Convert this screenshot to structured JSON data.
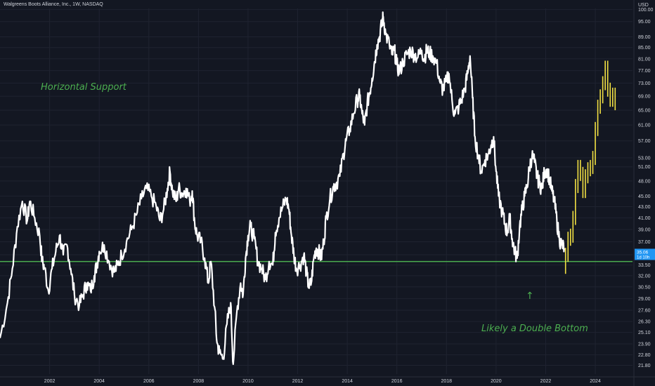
{
  "chart_data": {
    "type": "line",
    "title": "Walgreens Boots Alliance, Inc., 1W, NASDAQ",
    "currency": "USD",
    "y_scale": "log",
    "ylim": [
      21.0,
      100.5
    ],
    "xlim": [
      2000.0,
      2025.5
    ],
    "y_ticks": [
      "100.00",
      "95.00",
      "89.00",
      "85.00",
      "81.00",
      "77.00",
      "73.00",
      "69.00",
      "65.00",
      "61.00",
      "57.00",
      "53.00",
      "51.00",
      "48.00",
      "45.00",
      "43.00",
      "41.00",
      "39.00",
      "37.00",
      "35.00",
      "33.50",
      "32.00",
      "30.50",
      "29.00",
      "27.60",
      "26.30",
      "25.10",
      "23.90",
      "22.80",
      "21.80"
    ],
    "x_ticks": [
      "2002",
      "2004",
      "2006",
      "2008",
      "2010",
      "2012",
      "2014",
      "2016",
      "2018",
      "2020",
      "2022",
      "2024"
    ],
    "support_level": 34.0,
    "last_price": {
      "value": "35.06",
      "countdown": "1d 10h",
      "color": "#2196f3"
    },
    "annotations": {
      "support": "Horizontal Support",
      "double_bottom": "Likely a Double Bottom",
      "arrow": "↑"
    },
    "colors": {
      "background": "#131722",
      "grid": "#1f2330",
      "price": "#ffffff",
      "projection": "#f2e043",
      "support": "#4caf50",
      "axis_text": "#d1d4dc"
    },
    "series": [
      {
        "style": "line",
        "color": "#ffffff",
        "points": [
          [
            2000.0,
            24.5
          ],
          [
            2000.3,
            28.5
          ],
          [
            2000.5,
            33.0
          ],
          [
            2000.7,
            39.5
          ],
          [
            2000.9,
            44.0
          ],
          [
            2001.1,
            40.5
          ],
          [
            2001.2,
            44.0
          ],
          [
            2001.4,
            41.0
          ],
          [
            2001.6,
            38.0
          ],
          [
            2001.7,
            34.0
          ],
          [
            2001.8,
            33.0
          ],
          [
            2001.95,
            30.0
          ],
          [
            2002.1,
            33.0
          ],
          [
            2002.25,
            35.5
          ],
          [
            2002.4,
            38.0
          ],
          [
            2002.55,
            35.0
          ],
          [
            2002.7,
            36.5
          ],
          [
            2002.85,
            33.0
          ],
          [
            2003.0,
            29.5
          ],
          [
            2003.2,
            28.2
          ],
          [
            2003.35,
            29.5
          ],
          [
            2003.5,
            31.0
          ],
          [
            2003.65,
            30.0
          ],
          [
            2003.8,
            32.0
          ],
          [
            2003.9,
            33.5
          ],
          [
            2004.0,
            35.5
          ],
          [
            2004.2,
            36.5
          ],
          [
            2004.4,
            34.0
          ],
          [
            2004.6,
            32.5
          ],
          [
            2004.75,
            33.5
          ],
          [
            2004.9,
            35.0
          ],
          [
            2005.1,
            37.0
          ],
          [
            2005.3,
            39.0
          ],
          [
            2005.5,
            41.5
          ],
          [
            2005.7,
            44.5
          ],
          [
            2005.9,
            46.5
          ],
          [
            2006.1,
            45.0
          ],
          [
            2006.3,
            43.0
          ],
          [
            2006.45,
            40.5
          ],
          [
            2006.6,
            42.5
          ],
          [
            2006.75,
            46.5
          ],
          [
            2006.85,
            50.0
          ],
          [
            2006.95,
            46.0
          ],
          [
            2007.1,
            44.0
          ],
          [
            2007.2,
            46.5
          ],
          [
            2007.35,
            45.5
          ],
          [
            2007.5,
            46.5
          ],
          [
            2007.65,
            44.0
          ],
          [
            2007.75,
            46.0
          ],
          [
            2007.85,
            40.0
          ],
          [
            2007.95,
            38.0
          ],
          [
            2008.1,
            37.0
          ],
          [
            2008.25,
            34.5
          ],
          [
            2008.4,
            31.0
          ],
          [
            2008.5,
            34.0
          ],
          [
            2008.65,
            28.0
          ],
          [
            2008.75,
            24.0
          ],
          [
            2008.85,
            23.0
          ],
          [
            2009.0,
            22.5
          ],
          [
            2009.15,
            26.0
          ],
          [
            2009.3,
            28.5
          ],
          [
            2009.4,
            21.9
          ],
          [
            2009.55,
            27.5
          ],
          [
            2009.7,
            31.0
          ],
          [
            2009.8,
            29.5
          ],
          [
            2009.9,
            34.5
          ],
          [
            2010.0,
            38.0
          ],
          [
            2010.1,
            39.5
          ],
          [
            2010.25,
            37.5
          ],
          [
            2010.4,
            34.0
          ],
          [
            2010.55,
            33.0
          ],
          [
            2010.7,
            31.5
          ],
          [
            2010.85,
            34.0
          ],
          [
            2011.0,
            33.5
          ],
          [
            2011.1,
            38.5
          ],
          [
            2011.25,
            41.0
          ],
          [
            2011.4,
            43.0
          ],
          [
            2011.55,
            44.5
          ],
          [
            2011.65,
            42.5
          ],
          [
            2011.75,
            38.0
          ],
          [
            2011.85,
            35.0
          ],
          [
            2011.95,
            33.0
          ],
          [
            2012.1,
            33.5
          ],
          [
            2012.25,
            35.0
          ],
          [
            2012.35,
            32.5
          ],
          [
            2012.45,
            30.5
          ],
          [
            2012.55,
            31.0
          ],
          [
            2012.65,
            34.5
          ],
          [
            2012.75,
            36.0
          ],
          [
            2012.85,
            35.5
          ],
          [
            2012.95,
            34.5
          ],
          [
            2013.05,
            37.0
          ],
          [
            2013.15,
            41.0
          ],
          [
            2013.3,
            44.5
          ],
          [
            2013.45,
            47.0
          ],
          [
            2013.55,
            47.5
          ],
          [
            2013.7,
            49.0
          ],
          [
            2013.85,
            54.0
          ],
          [
            2013.95,
            57.0
          ],
          [
            2014.1,
            60.0
          ],
          [
            2014.25,
            64.0
          ],
          [
            2014.4,
            68.0
          ],
          [
            2014.5,
            69.0
          ],
          [
            2014.6,
            64.0
          ],
          [
            2014.7,
            61.0
          ],
          [
            2014.8,
            66.5
          ],
          [
            2014.9,
            70.0
          ],
          [
            2015.0,
            74.5
          ],
          [
            2015.1,
            80.0
          ],
          [
            2015.2,
            86.0
          ],
          [
            2015.3,
            89.0
          ],
          [
            2015.4,
            94.5
          ],
          [
            2015.45,
            97.0
          ],
          [
            2015.55,
            90.0
          ],
          [
            2015.7,
            86.0
          ],
          [
            2015.8,
            82.5
          ],
          [
            2015.9,
            84.0
          ],
          [
            2016.0,
            79.0
          ],
          [
            2016.1,
            76.5
          ],
          [
            2016.25,
            80.0
          ],
          [
            2016.4,
            82.5
          ],
          [
            2016.55,
            84.0
          ],
          [
            2016.7,
            82.5
          ],
          [
            2016.85,
            81.5
          ],
          [
            2017.0,
            84.0
          ],
          [
            2017.1,
            81.0
          ],
          [
            2017.2,
            84.0
          ],
          [
            2017.3,
            83.0
          ],
          [
            2017.45,
            82.0
          ],
          [
            2017.6,
            79.5
          ],
          [
            2017.75,
            73.0
          ],
          [
            2017.85,
            71.0
          ],
          [
            2018.0,
            73.5
          ],
          [
            2018.1,
            76.0
          ],
          [
            2018.25,
            66.0
          ],
          [
            2018.35,
            64.0
          ],
          [
            2018.5,
            66.0
          ],
          [
            2018.6,
            68.0
          ],
          [
            2018.75,
            71.5
          ],
          [
            2018.85,
            76.0
          ],
          [
            2018.95,
            82.0
          ],
          [
            2019.05,
            68.5
          ],
          [
            2019.15,
            58.0
          ],
          [
            2019.3,
            53.0
          ],
          [
            2019.4,
            50.0
          ],
          [
            2019.55,
            52.5
          ],
          [
            2019.7,
            54.0
          ],
          [
            2019.8,
            56.0
          ],
          [
            2019.9,
            58.0
          ],
          [
            2020.0,
            50.0
          ],
          [
            2020.1,
            45.0
          ],
          [
            2020.25,
            42.0
          ],
          [
            2020.35,
            40.0
          ],
          [
            2020.45,
            38.5
          ],
          [
            2020.55,
            41.0
          ],
          [
            2020.65,
            37.5
          ],
          [
            2020.75,
            35.5
          ],
          [
            2020.85,
            34.5
          ],
          [
            2020.95,
            39.5
          ],
          [
            2021.05,
            42.5
          ],
          [
            2021.15,
            45.0
          ],
          [
            2021.25,
            47.0
          ],
          [
            2021.35,
            51.0
          ],
          [
            2021.45,
            53.5
          ],
          [
            2021.55,
            52.0
          ],
          [
            2021.65,
            49.0
          ],
          [
            2021.75,
            47.5
          ],
          [
            2021.85,
            46.5
          ],
          [
            2021.95,
            50.0
          ],
          [
            2022.05,
            50.5
          ],
          [
            2022.15,
            48.5
          ],
          [
            2022.25,
            46.0
          ],
          [
            2022.35,
            44.0
          ],
          [
            2022.45,
            40.5
          ],
          [
            2022.55,
            37.5
          ],
          [
            2022.65,
            36.5
          ],
          [
            2022.75,
            36.0
          ]
        ]
      },
      {
        "style": "bars",
        "color": "#f2e043",
        "points": [
          [
            2022.8,
            35.0
          ],
          [
            2022.9,
            37.5
          ],
          [
            2023.0,
            38.0
          ],
          [
            2023.1,
            41.0
          ],
          [
            2023.2,
            47.0
          ],
          [
            2023.3,
            51.0
          ],
          [
            2023.4,
            49.5
          ],
          [
            2023.5,
            46.0
          ],
          [
            2023.6,
            49.0
          ],
          [
            2023.7,
            50.5
          ],
          [
            2023.8,
            51.0
          ],
          [
            2023.9,
            53.0
          ],
          [
            2024.0,
            60.0
          ],
          [
            2024.1,
            66.0
          ],
          [
            2024.2,
            69.0
          ],
          [
            2024.3,
            73.0
          ],
          [
            2024.4,
            78.0
          ],
          [
            2024.5,
            71.0
          ],
          [
            2024.6,
            68.0
          ],
          [
            2024.7,
            69.5
          ],
          [
            2024.8,
            67.0
          ]
        ]
      }
    ]
  }
}
